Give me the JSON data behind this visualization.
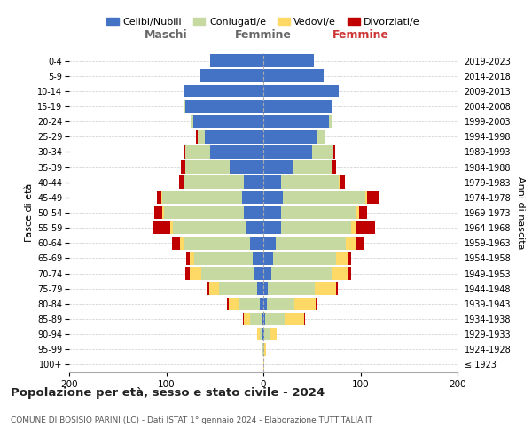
{
  "age_groups": [
    "100+",
    "95-99",
    "90-94",
    "85-89",
    "80-84",
    "75-79",
    "70-74",
    "65-69",
    "60-64",
    "55-59",
    "50-54",
    "45-49",
    "40-44",
    "35-39",
    "30-34",
    "25-29",
    "20-24",
    "15-19",
    "10-14",
    "5-9",
    "0-4"
  ],
  "birth_years": [
    "≤ 1923",
    "1924-1928",
    "1929-1933",
    "1934-1938",
    "1939-1943",
    "1944-1948",
    "1949-1953",
    "1954-1958",
    "1959-1963",
    "1964-1968",
    "1969-1973",
    "1974-1978",
    "1979-1983",
    "1984-1988",
    "1989-1993",
    "1994-1998",
    "1999-2003",
    "2004-2008",
    "2009-2013",
    "2014-2018",
    "2019-2023"
  ],
  "colors": {
    "celibi": "#4472C4",
    "coniugati": "#c5d9a0",
    "vedovi": "#FFD966",
    "divorziati": "#C00000"
  },
  "maschi": {
    "celibi": [
      0,
      0,
      1,
      2,
      4,
      6,
      9,
      11,
      14,
      18,
      20,
      22,
      20,
      35,
      55,
      60,
      72,
      80,
      82,
      65,
      55
    ],
    "coniugati": [
      0,
      1,
      3,
      12,
      22,
      40,
      55,
      60,
      68,
      75,
      82,
      82,
      62,
      45,
      25,
      8,
      3,
      1,
      0,
      0,
      0
    ],
    "vedovi": [
      0,
      0,
      2,
      6,
      10,
      10,
      12,
      5,
      4,
      3,
      2,
      1,
      0,
      0,
      0,
      0,
      0,
      0,
      0,
      0,
      0
    ],
    "divorziati": [
      0,
      0,
      0,
      1,
      1,
      2,
      4,
      3,
      8,
      18,
      8,
      5,
      5,
      5,
      2,
      1,
      0,
      0,
      0,
      0,
      0
    ]
  },
  "femmine": {
    "celibi": [
      0,
      0,
      1,
      2,
      4,
      5,
      8,
      10,
      13,
      18,
      18,
      20,
      18,
      30,
      50,
      55,
      68,
      70,
      78,
      62,
      52
    ],
    "coniugati": [
      0,
      1,
      5,
      20,
      28,
      48,
      62,
      65,
      72,
      72,
      78,
      85,
      60,
      40,
      22,
      8,
      3,
      1,
      0,
      0,
      0
    ],
    "vedovi": [
      1,
      2,
      8,
      20,
      22,
      22,
      18,
      12,
      10,
      5,
      3,
      2,
      1,
      0,
      0,
      0,
      0,
      0,
      0,
      0,
      0
    ],
    "divorziati": [
      0,
      0,
      0,
      1,
      2,
      2,
      2,
      3,
      8,
      20,
      8,
      12,
      5,
      5,
      2,
      1,
      0,
      0,
      0,
      0,
      0
    ]
  },
  "xlim": 200,
  "title": "Popolazione per età, sesso e stato civile - 2024",
  "subtitle": "COMUNE DI BOSISIO PARINI (LC) - Dati ISTAT 1° gennaio 2024 - Elaborazione TUTTITALIA.IT",
  "xlabel_left": "Maschi",
  "xlabel_right": "Femmine",
  "ylabel_left": "Fasce di età",
  "ylabel_right": "Anni di nascita",
  "legend_labels": [
    "Celibi/Nubili",
    "Coniugati/e",
    "Vedovi/e",
    "Divorziati/e"
  ],
  "background_color": "#ffffff"
}
